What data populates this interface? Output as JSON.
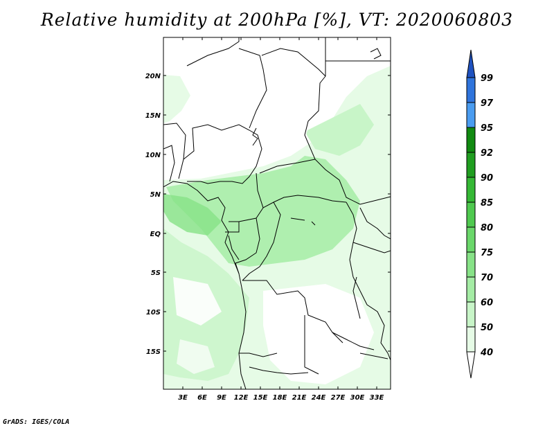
{
  "title": "Relative humidity at 200hPa [%], VT: 2020060803",
  "footer": "GrADS: IGES/COLA",
  "map": {
    "lat_labels": [
      "20N",
      "15N",
      "10N",
      "5N",
      "EQ",
      "5S",
      "10S",
      "15S"
    ],
    "lon_labels": [
      "3E",
      "6E",
      "9E",
      "12E",
      "15E",
      "18E",
      "21E",
      "24E",
      "27E",
      "30E",
      "33E"
    ]
  },
  "colorbar": {
    "labels": [
      "40",
      "50",
      "60",
      "70",
      "75",
      "80",
      "85",
      "90",
      "92",
      "95",
      "97",
      "99"
    ],
    "colors": [
      "#ffffff",
      "#e6fbe6",
      "#c8f5c8",
      "#a5eca5",
      "#87e287",
      "#6ad76a",
      "#4fc94f",
      "#35b835",
      "#209e20",
      "#118a11",
      "#4a9cf0",
      "#2f74dc",
      "#1f52c0"
    ]
  }
}
